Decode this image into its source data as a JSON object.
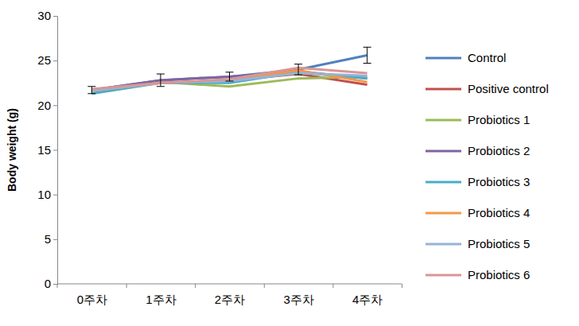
{
  "chart_data": {
    "type": "line",
    "y_label": "Body weight (g)",
    "categories": [
      "0주차",
      "1주차",
      "2주차",
      "3주차",
      "4주차"
    ],
    "ylim": [
      0,
      30
    ],
    "yticks": [
      0,
      5,
      10,
      15,
      20,
      25,
      30
    ],
    "grid": false,
    "legend": "right",
    "series": [
      {
        "name": "Control",
        "color": "#4f81bd",
        "values": [
          21.7,
          22.8,
          23.2,
          24.0,
          25.6
        ],
        "errors": [
          0.4,
          0.7,
          0.5,
          0.6,
          0.9
        ]
      },
      {
        "name": "Positive control",
        "color": "#c0504d",
        "values": [
          21.6,
          22.5,
          22.8,
          23.5,
          22.3
        ]
      },
      {
        "name": "Probiotics 1",
        "color": "#9bbb59",
        "values": [
          21.5,
          22.6,
          22.1,
          23.0,
          23.2
        ]
      },
      {
        "name": "Probiotics 2",
        "color": "#8064a2",
        "values": [
          21.7,
          22.8,
          23.2,
          23.8,
          23.0
        ]
      },
      {
        "name": "Probiotics 3",
        "color": "#4bacc6",
        "values": [
          21.3,
          22.5,
          22.5,
          23.7,
          23.0
        ]
      },
      {
        "name": "Probiotics 4",
        "color": "#f79646",
        "values": [
          21.6,
          22.5,
          22.8,
          23.9,
          22.6
        ]
      },
      {
        "name": "Probiotics 5",
        "color": "#95b3d7",
        "values": [
          21.6,
          22.5,
          22.7,
          23.6,
          23.3
        ]
      },
      {
        "name": "Probiotics 6",
        "color": "#d99694",
        "values": [
          21.8,
          22.5,
          22.9,
          24.2,
          23.6
        ]
      }
    ]
  }
}
